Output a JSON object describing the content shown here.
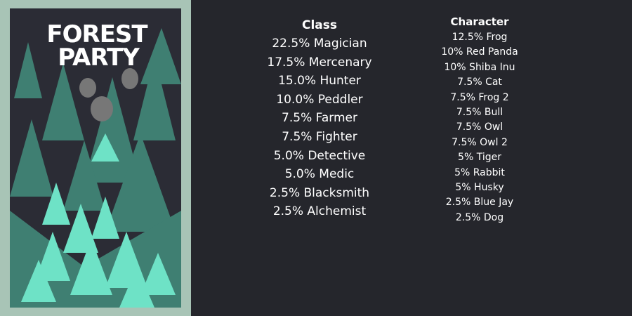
{
  "card": {
    "title_lines": [
      "FOREST",
      "PARTY"
    ]
  },
  "class_list": {
    "heading": "Class",
    "items": [
      "22.5% Magician",
      "17.5% Mercenary",
      "15.0% Hunter",
      "10.0% Peddler",
      "7.5% Farmer",
      "7.5% Fighter",
      "5.0% Detective",
      "5.0% Medic",
      "2.5% Blacksmith",
      "2.5% Alchemist"
    ]
  },
  "character_list": {
    "heading": "Character",
    "items": [
      "12.5% Frog",
      "10% Red Panda",
      "10% Shiba Inu",
      "7.5% Cat",
      "7.5% Frog 2",
      "7.5% Bull",
      "7.5% Owl",
      "7.5% Owl 2",
      "5% Tiger",
      "5% Rabbit",
      "5% Husky",
      "2.5% Blue Jay",
      "2.5% Dog"
    ]
  }
}
